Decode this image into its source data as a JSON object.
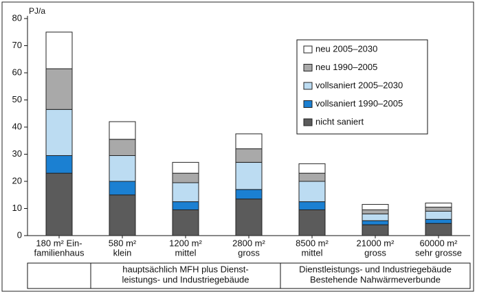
{
  "chart_data": {
    "type": "stacked_bar",
    "y_label": "PJ/a",
    "categories": [
      [
        "180 m² Ein-",
        "familienhaus"
      ],
      [
        "580 m²",
        "klein"
      ],
      [
        "1200 m²",
        "mittel"
      ],
      [
        "2800 m²",
        "gross"
      ],
      [
        "8500 m²",
        "mittel"
      ],
      [
        "21000 m²",
        "gross"
      ],
      [
        "60000 m²",
        "sehr grosse"
      ]
    ],
    "series": [
      {
        "name": "nicht saniert",
        "color": "#5b5b5b",
        "values": [
          23,
          15,
          9.5,
          13.5,
          9.5,
          4,
          4.5
        ]
      },
      {
        "name": "vollsaniert 1990–2005",
        "color": "#1b80d2",
        "values": [
          6.5,
          5,
          3,
          3.5,
          3,
          1.5,
          1.5
        ]
      },
      {
        "name": "vollsaniert 2005–2030",
        "color": "#bcdcf2",
        "values": [
          17,
          9.5,
          7,
          10,
          7.5,
          2.5,
          3
        ]
      },
      {
        "name": "neu 1990–2005",
        "color": "#a9a9a9",
        "values": [
          15,
          6,
          3.5,
          5,
          3,
          1.5,
          1.5
        ]
      },
      {
        "name": "neu 2005–2030",
        "color": "#ffffff",
        "values": [
          13.5,
          6.5,
          4,
          5.5,
          3.5,
          2,
          1.5
        ]
      }
    ],
    "groups": [
      [
        "hauptsächlich MFH plus Dienst-",
        "leistungs- und Industriegebäude"
      ],
      [
        "Dienstleistungs- und Industriegebäude",
        "Bestehende Nahwärmeverbunde"
      ]
    ],
    "ylim": [
      0,
      80
    ],
    "yticks": [
      0,
      10,
      20,
      30,
      40,
      50,
      60,
      70,
      80
    ],
    "grid": false,
    "legend": "upper right"
  }
}
